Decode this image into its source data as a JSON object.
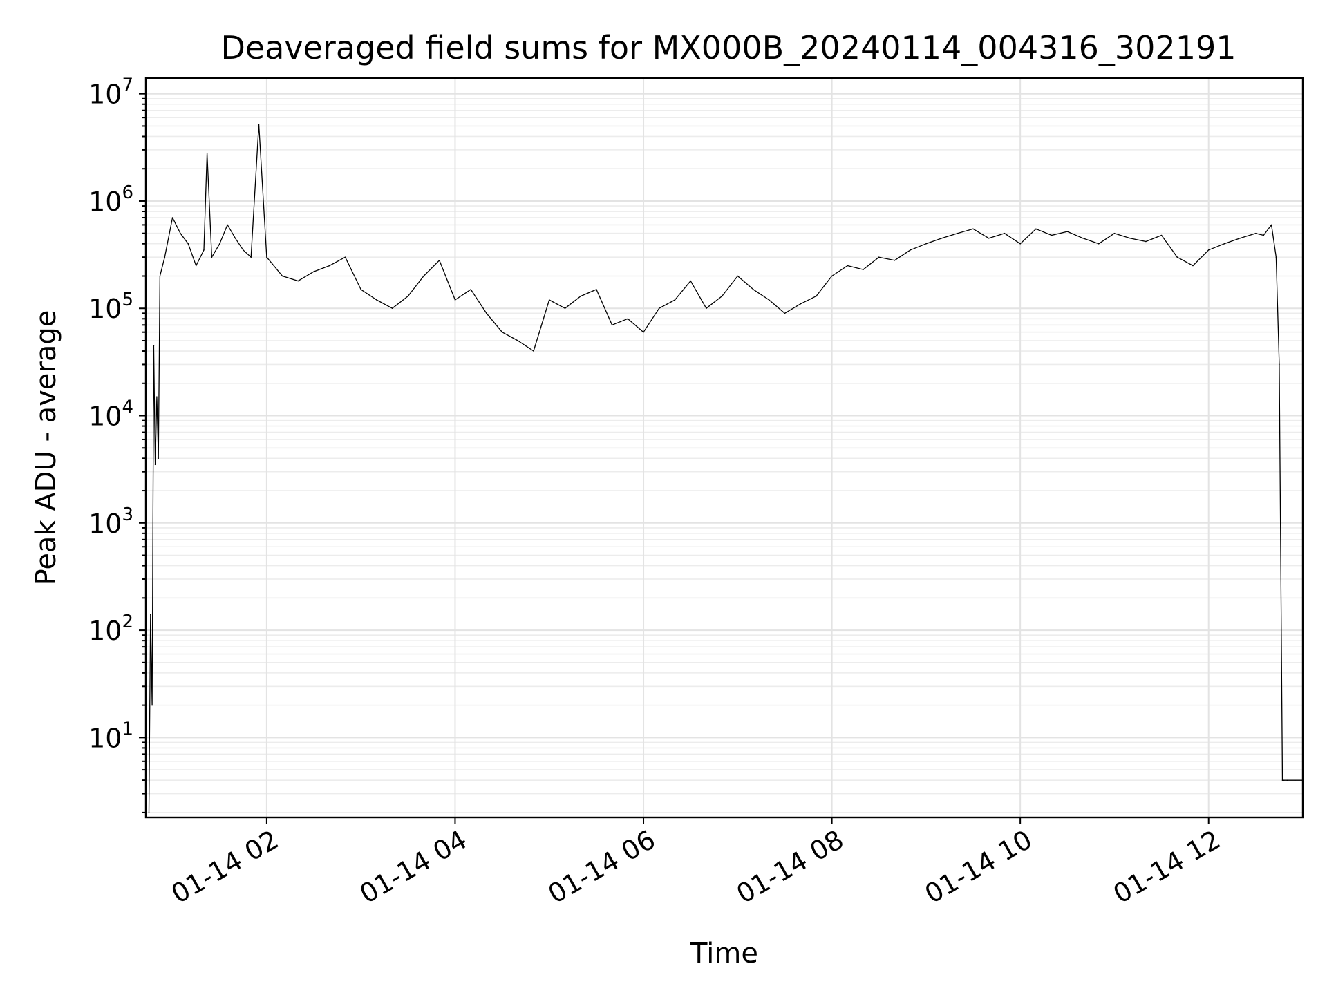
{
  "chart_data": {
    "type": "line",
    "title": "Deaveraged field sums for MX000B_20240114_004316_302191",
    "xlabel": "Time",
    "ylabel": "Peak ADU - average",
    "y_scale": "log",
    "ylim": [
      1.8,
      14000000
    ],
    "xlim": [
      "2024-01-14T00:43",
      "2024-01-14T13:00"
    ],
    "grid": true,
    "legend": "none",
    "line_color": "#000000",
    "x_ticks": [
      {
        "t": "2024-01-14T02:00",
        "label": "01-14 02"
      },
      {
        "t": "2024-01-14T04:00",
        "label": "01-14 04"
      },
      {
        "t": "2024-01-14T06:00",
        "label": "01-14 06"
      },
      {
        "t": "2024-01-14T08:00",
        "label": "01-14 08"
      },
      {
        "t": "2024-01-14T10:00",
        "label": "01-14 10"
      },
      {
        "t": "2024-01-14T12:00",
        "label": "01-14 12"
      }
    ],
    "y_ticks": [
      {
        "value": 10,
        "mantissa": "10",
        "exp": "1"
      },
      {
        "value": 100,
        "mantissa": "10",
        "exp": "2"
      },
      {
        "value": 1000,
        "mantissa": "10",
        "exp": "3"
      },
      {
        "value": 10000,
        "mantissa": "10",
        "exp": "4"
      },
      {
        "value": 100000,
        "mantissa": "10",
        "exp": "5"
      },
      {
        "value": 1000000,
        "mantissa": "10",
        "exp": "6"
      },
      {
        "value": 10000000,
        "mantissa": "10",
        "exp": "7"
      }
    ],
    "series": [
      {
        "x": [
          "2024-01-14T00:45",
          "2024-01-14T00:46",
          "2024-01-14T00:47",
          "2024-01-14T00:48",
          "2024-01-14T00:49",
          "2024-01-14T00:50",
          "2024-01-14T00:51",
          "2024-01-14T00:52",
          "2024-01-14T00:55",
          "2024-01-14T01:00",
          "2024-01-14T01:05",
          "2024-01-14T01:10",
          "2024-01-14T01:15",
          "2024-01-14T01:20",
          "2024-01-14T01:22",
          "2024-01-14T01:25",
          "2024-01-14T01:30",
          "2024-01-14T01:35",
          "2024-01-14T01:40",
          "2024-01-14T01:45",
          "2024-01-14T01:50",
          "2024-01-14T01:55",
          "2024-01-14T02:00",
          "2024-01-14T02:10",
          "2024-01-14T02:20",
          "2024-01-14T02:30",
          "2024-01-14T02:40",
          "2024-01-14T02:50",
          "2024-01-14T03:00",
          "2024-01-14T03:10",
          "2024-01-14T03:20",
          "2024-01-14T03:30",
          "2024-01-14T03:40",
          "2024-01-14T03:50",
          "2024-01-14T04:00",
          "2024-01-14T04:10",
          "2024-01-14T04:20",
          "2024-01-14T04:30",
          "2024-01-14T04:40",
          "2024-01-14T04:50",
          "2024-01-14T05:00",
          "2024-01-14T05:10",
          "2024-01-14T05:20",
          "2024-01-14T05:30",
          "2024-01-14T05:40",
          "2024-01-14T05:50",
          "2024-01-14T06:00",
          "2024-01-14T06:10",
          "2024-01-14T06:20",
          "2024-01-14T06:30",
          "2024-01-14T06:40",
          "2024-01-14T06:50",
          "2024-01-14T07:00",
          "2024-01-14T07:10",
          "2024-01-14T07:20",
          "2024-01-14T07:30",
          "2024-01-14T07:40",
          "2024-01-14T07:50",
          "2024-01-14T08:00",
          "2024-01-14T08:10",
          "2024-01-14T08:20",
          "2024-01-14T08:30",
          "2024-01-14T08:40",
          "2024-01-14T08:50",
          "2024-01-14T09:00",
          "2024-01-14T09:10",
          "2024-01-14T09:20",
          "2024-01-14T09:30",
          "2024-01-14T09:40",
          "2024-01-14T09:50",
          "2024-01-14T10:00",
          "2024-01-14T10:10",
          "2024-01-14T10:20",
          "2024-01-14T10:30",
          "2024-01-14T10:40",
          "2024-01-14T10:50",
          "2024-01-14T11:00",
          "2024-01-14T11:10",
          "2024-01-14T11:20",
          "2024-01-14T11:30",
          "2024-01-14T11:40",
          "2024-01-14T11:50",
          "2024-01-14T12:00",
          "2024-01-14T12:10",
          "2024-01-14T12:20",
          "2024-01-14T12:30",
          "2024-01-14T12:35",
          "2024-01-14T12:40",
          "2024-01-14T12:43",
          "2024-01-14T12:45",
          "2024-01-14T12:47",
          "2024-01-14T12:48",
          "2024-01-14T12:50",
          "2024-01-14T12:55",
          "2024-01-14T13:00"
        ],
        "y": [
          2,
          140,
          20,
          45000,
          3500,
          15000,
          4000,
          200000,
          300000,
          700000,
          500000,
          400000,
          250000,
          350000,
          2800000,
          300000,
          400000,
          600000,
          450000,
          350000,
          300000,
          5200000,
          300000,
          200000,
          180000,
          220000,
          250000,
          300000,
          150000,
          120000,
          100000,
          130000,
          200000,
          280000,
          120000,
          150000,
          90000,
          60000,
          50000,
          40000,
          120000,
          100000,
          130000,
          150000,
          70000,
          80000,
          60000,
          100000,
          120000,
          180000,
          100000,
          130000,
          200000,
          150000,
          120000,
          90000,
          110000,
          130000,
          200000,
          250000,
          230000,
          300000,
          280000,
          350000,
          400000,
          450000,
          500000,
          550000,
          450000,
          500000,
          400000,
          550000,
          480000,
          520000,
          450000,
          400000,
          500000,
          450000,
          420000,
          480000,
          300000,
          250000,
          350000,
          400000,
          450000,
          500000,
          480000,
          600000,
          300000,
          30000,
          4,
          4,
          4,
          4,
          4
        ]
      }
    ]
  }
}
